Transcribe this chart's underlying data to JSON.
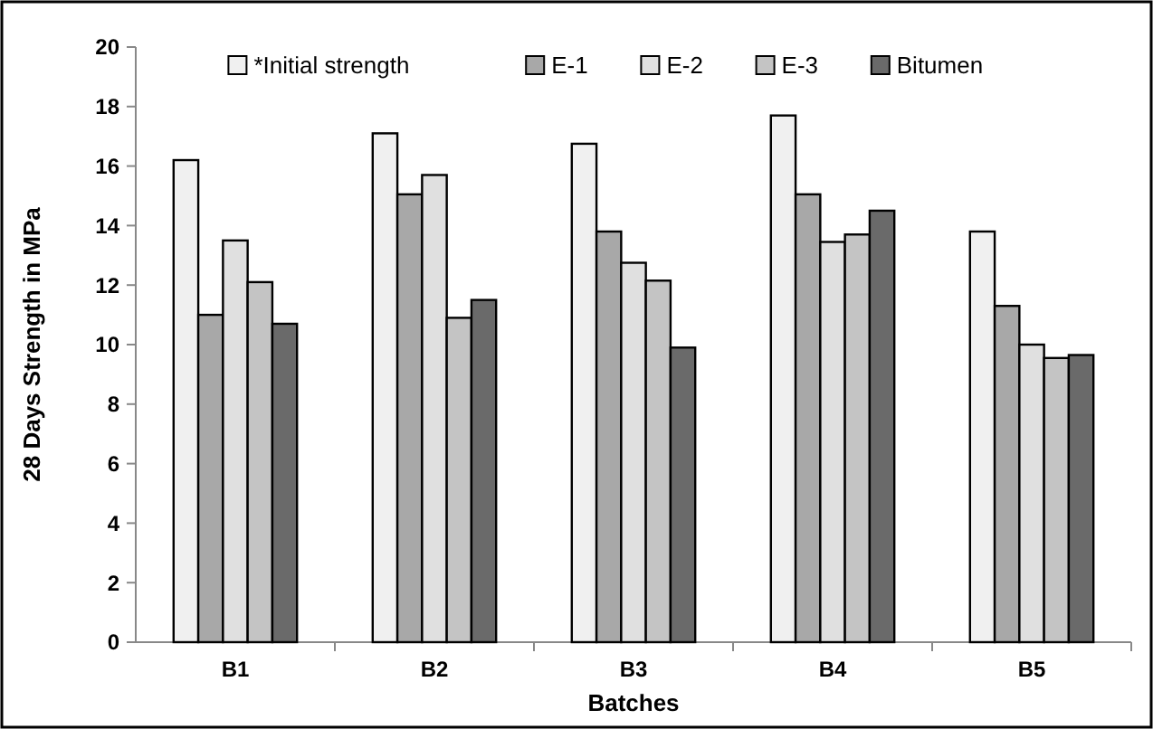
{
  "chart_data": {
    "type": "bar",
    "xlabel": "Batches",
    "ylabel": "28 Days Strength in MPa",
    "categories": [
      "B1",
      "B2",
      "B3",
      "B4",
      "B5"
    ],
    "series": [
      {
        "name": "*Initial strength",
        "color": "#f0f0f0",
        "values": [
          16.2,
          17.1,
          16.75,
          17.7,
          13.8
        ]
      },
      {
        "name": "E-1",
        "color": "#a8a8a8",
        "values": [
          11.0,
          15.05,
          13.8,
          15.05,
          11.3
        ]
      },
      {
        "name": "E-2",
        "color": "#e0e0e0",
        "values": [
          13.5,
          15.7,
          12.75,
          13.45,
          10.0
        ]
      },
      {
        "name": "E-3",
        "color": "#c4c4c4",
        "values": [
          12.1,
          10.9,
          12.15,
          13.7,
          9.55
        ]
      },
      {
        "name": "Bitumen",
        "color": "#6a6a6a",
        "values": [
          10.7,
          11.5,
          9.9,
          14.5,
          9.65
        ]
      }
    ],
    "ylim": [
      0,
      20
    ],
    "yticks": [
      0,
      2,
      4,
      6,
      8,
      10,
      12,
      14,
      16,
      18,
      20
    ],
    "grid": false,
    "legend": "top"
  }
}
